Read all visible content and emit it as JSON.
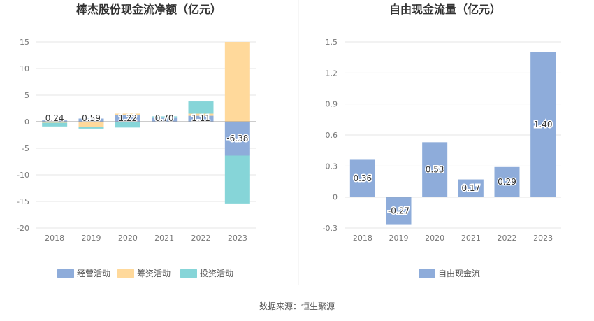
{
  "source_text": "数据来源：恒生聚源",
  "colors": {
    "operating": "#8EACDA",
    "financing": "#FFD99B",
    "investing": "#86D5D8",
    "free_cash_flow": "#8EACDA",
    "grid": "#E6E6E6",
    "axis": "#999999",
    "tick_text": "#777777",
    "title_text": "#333333"
  },
  "chart_data": [
    {
      "type": "bar",
      "stacked": true,
      "title": "棒杰股份现金流净额（亿元）",
      "categories": [
        "2018",
        "2019",
        "2020",
        "2021",
        "2022",
        "2023"
      ],
      "ylim": [
        -20,
        15
      ],
      "yticks": [
        15,
        10,
        5,
        0,
        -5,
        -10,
        -15,
        -20
      ],
      "grid": true,
      "legend_position": "bottom",
      "series": [
        {
          "name": "经营活动",
          "values": [
            0.24,
            0.59,
            1.22,
            0.7,
            1.11,
            -6.38
          ]
        },
        {
          "name": "筹资活动",
          "values": [
            -0.2,
            -1.0,
            0.3,
            -0.1,
            0.4,
            15.0
          ]
        },
        {
          "name": "投资活动",
          "values": [
            -0.7,
            -0.3,
            -1.1,
            0.3,
            2.3,
            -9.0
          ]
        }
      ],
      "data_labels": [
        "0.24",
        "0.59",
        "1.22",
        "0.70",
        "1.11",
        "-6.38"
      ]
    },
    {
      "type": "bar",
      "title": "自由现金流量（亿元）",
      "categories": [
        "2018",
        "2019",
        "2020",
        "2021",
        "2022",
        "2023"
      ],
      "ylim": [
        -0.3,
        1.5
      ],
      "yticks": [
        1.5,
        1.2,
        0.9,
        0.6,
        0.3,
        0,
        -0.3
      ],
      "ytick_labels": [
        "1.5",
        "1.2",
        "0.9",
        "0.6",
        "0.3",
        "0",
        "-0.3"
      ],
      "grid": true,
      "legend_position": "bottom",
      "series": [
        {
          "name": "自由现金流",
          "values": [
            0.36,
            -0.27,
            0.53,
            0.17,
            0.29,
            1.4
          ]
        }
      ],
      "data_labels": [
        "0.36",
        "-0.27",
        "0.53",
        "0.17",
        "0.29",
        "1.40"
      ]
    }
  ]
}
